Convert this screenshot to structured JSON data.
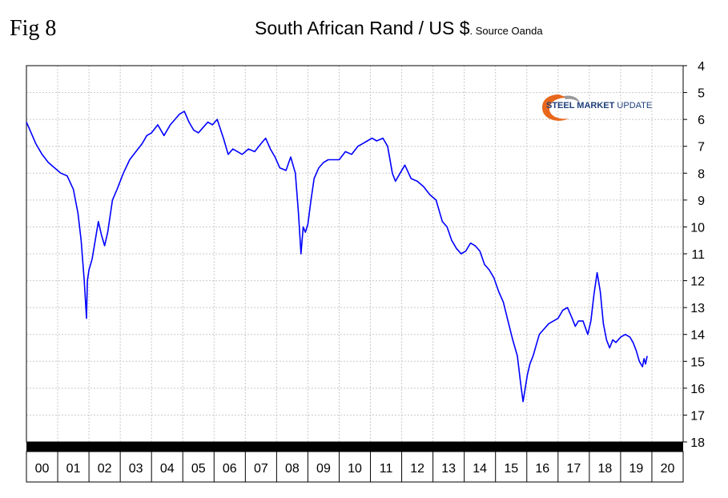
{
  "figure_label": "Fig 8",
  "logo": {
    "text_bold": "STEEL MARKET",
    "text_light": " UPDATE"
  },
  "chart_data": {
    "type": "line",
    "title": "South African Rand / US $",
    "subtitle": ". Source Oanda",
    "xlabel": "",
    "ylabel": "",
    "y_inverted": true,
    "ylim": [
      4,
      18
    ],
    "yticks": [
      4,
      5,
      6,
      7,
      8,
      9,
      10,
      11,
      12,
      13,
      14,
      15,
      16,
      17,
      18
    ],
    "xlim": [
      2000,
      2021
    ],
    "xtick_labels": [
      "00",
      "01",
      "02",
      "03",
      "04",
      "05",
      "06",
      "07",
      "08",
      "09",
      "10",
      "11",
      "12",
      "13",
      "14",
      "15",
      "16",
      "17",
      "18",
      "19",
      "20"
    ],
    "grid": true,
    "legend": "none",
    "colors": {
      "line": "#0000ff",
      "grid": "#c8c8c8",
      "axis_band": "#000000"
    },
    "series": [
      {
        "values_x": [
          2000.0,
          2000.15,
          2000.3,
          2000.5,
          2000.7,
          2000.9,
          2001.1,
          2001.3,
          2001.5,
          2001.65,
          2001.75,
          2001.85,
          2001.92,
          2001.95,
          2002.0,
          2002.1,
          2002.2,
          2002.3,
          2002.4,
          2002.5,
          2002.6,
          2002.75,
          2002.9,
          2003.1,
          2003.3,
          2003.5,
          2003.7,
          2003.85,
          2004.0,
          2004.2,
          2004.4,
          2004.6,
          2004.75,
          2004.9,
          2005.05,
          2005.2,
          2005.35,
          2005.5,
          2005.65,
          2005.8,
          2005.95,
          2006.1,
          2006.3,
          2006.45,
          2006.6,
          2006.75,
          2006.9,
          2007.1,
          2007.3,
          2007.5,
          2007.65,
          2007.8,
          2007.95,
          2008.1,
          2008.3,
          2008.45,
          2008.6,
          2008.7,
          2008.78,
          2008.85,
          2008.92,
          2009.0,
          2009.1,
          2009.2,
          2009.35,
          2009.5,
          2009.65,
          2009.8,
          2010.0,
          2010.2,
          2010.4,
          2010.6,
          2010.75,
          2010.9,
          2011.05,
          2011.2,
          2011.4,
          2011.55,
          2011.7,
          2011.8,
          2011.95,
          2012.1,
          2012.3,
          2012.5,
          2012.7,
          2012.9,
          2013.1,
          2013.3,
          2013.45,
          2013.6,
          2013.75,
          2013.9,
          2014.05,
          2014.2,
          2014.35,
          2014.5,
          2014.65,
          2014.8,
          2014.95,
          2015.1,
          2015.25,
          2015.4,
          2015.55,
          2015.7,
          2015.8,
          2015.88,
          2015.95,
          2016.02,
          2016.1,
          2016.2,
          2016.3,
          2016.4,
          2016.55,
          2016.7,
          2016.85,
          2017.0,
          2017.15,
          2017.3,
          2017.45,
          2017.55,
          2017.65,
          2017.8,
          2017.95,
          2018.05,
          2018.15,
          2018.25,
          2018.35,
          2018.45,
          2018.55,
          2018.65,
          2018.75,
          2018.85,
          2019.0,
          2019.15,
          2019.3,
          2019.4,
          2019.5,
          2019.6,
          2019.7,
          2019.75,
          2019.8,
          2019.85
        ],
        "values_y": [
          6.1,
          6.5,
          6.9,
          7.3,
          7.6,
          7.8,
          8.0,
          8.1,
          8.6,
          9.5,
          10.5,
          12.0,
          13.4,
          12.0,
          11.6,
          11.2,
          10.5,
          9.8,
          10.3,
          10.7,
          10.2,
          9.0,
          8.6,
          8.0,
          7.5,
          7.2,
          6.9,
          6.6,
          6.5,
          6.2,
          6.6,
          6.2,
          6.0,
          5.8,
          5.7,
          6.1,
          6.4,
          6.5,
          6.3,
          6.1,
          6.2,
          6.0,
          6.7,
          7.3,
          7.1,
          7.2,
          7.3,
          7.1,
          7.2,
          6.9,
          6.7,
          7.1,
          7.4,
          7.8,
          7.9,
          7.4,
          8.0,
          9.5,
          11.0,
          10.0,
          10.2,
          9.9,
          9.0,
          8.2,
          7.8,
          7.6,
          7.5,
          7.5,
          7.5,
          7.2,
          7.3,
          7.0,
          6.9,
          6.8,
          6.7,
          6.8,
          6.7,
          7.0,
          8.0,
          8.3,
          8.0,
          7.7,
          8.2,
          8.3,
          8.5,
          8.8,
          9.0,
          9.8,
          10.0,
          10.5,
          10.8,
          11.0,
          10.9,
          10.6,
          10.7,
          10.9,
          11.4,
          11.6,
          11.9,
          12.4,
          12.8,
          13.5,
          14.2,
          14.8,
          15.8,
          16.5,
          16.0,
          15.5,
          15.1,
          14.8,
          14.4,
          14.0,
          13.8,
          13.6,
          13.5,
          13.4,
          13.1,
          13.0,
          13.4,
          13.7,
          13.5,
          13.5,
          14.0,
          13.5,
          12.5,
          11.7,
          12.4,
          13.6,
          14.2,
          14.5,
          14.2,
          14.3,
          14.1,
          14.0,
          14.1,
          14.3,
          14.6,
          15.0,
          15.2,
          14.9,
          15.1,
          14.8
        ]
      }
    ]
  }
}
